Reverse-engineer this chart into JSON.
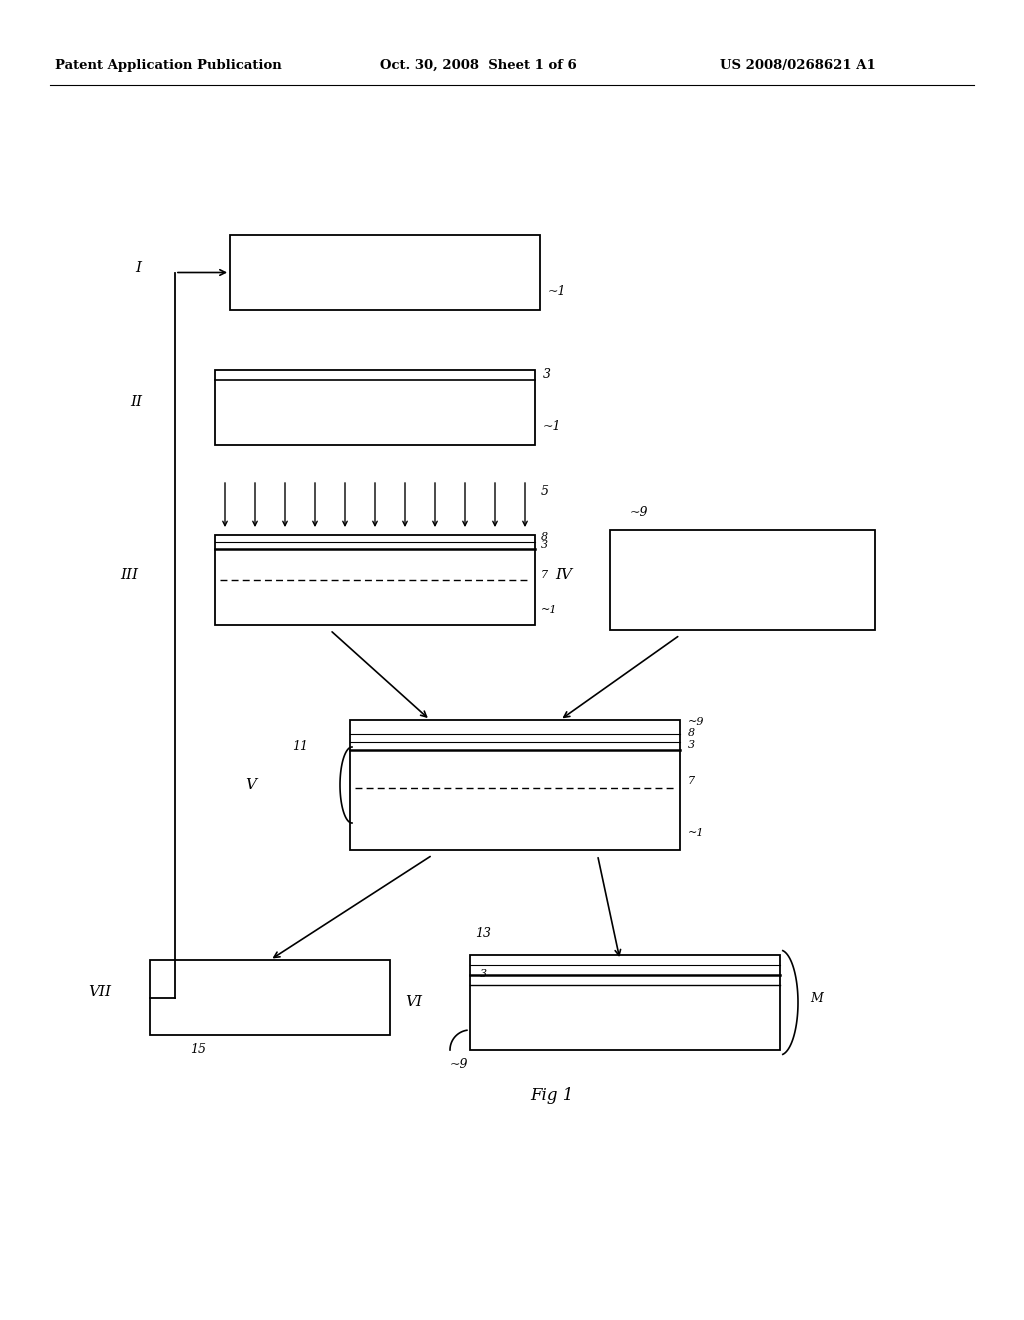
{
  "bg_color": "#ffffff",
  "header_left": "Patent Application Publication",
  "header_mid": "Oct. 30, 2008  Sheet 1 of 6",
  "header_right": "US 2008/0268621 A1",
  "fig_label": "Fig 1",
  "step_I": "I",
  "step_II": "II",
  "step_III": "III",
  "step_IV": "IV",
  "step_V": "V",
  "step_VI": "VI",
  "step_VII": "VII",
  "lbl_1": "1",
  "lbl_3": "3",
  "lbl_5": "5",
  "lbl_7": "7",
  "lbl_8": "8",
  "lbl_9": "9",
  "lbl_11": "11",
  "lbl_13": "13",
  "lbl_15": "15",
  "lbl_M": "M"
}
